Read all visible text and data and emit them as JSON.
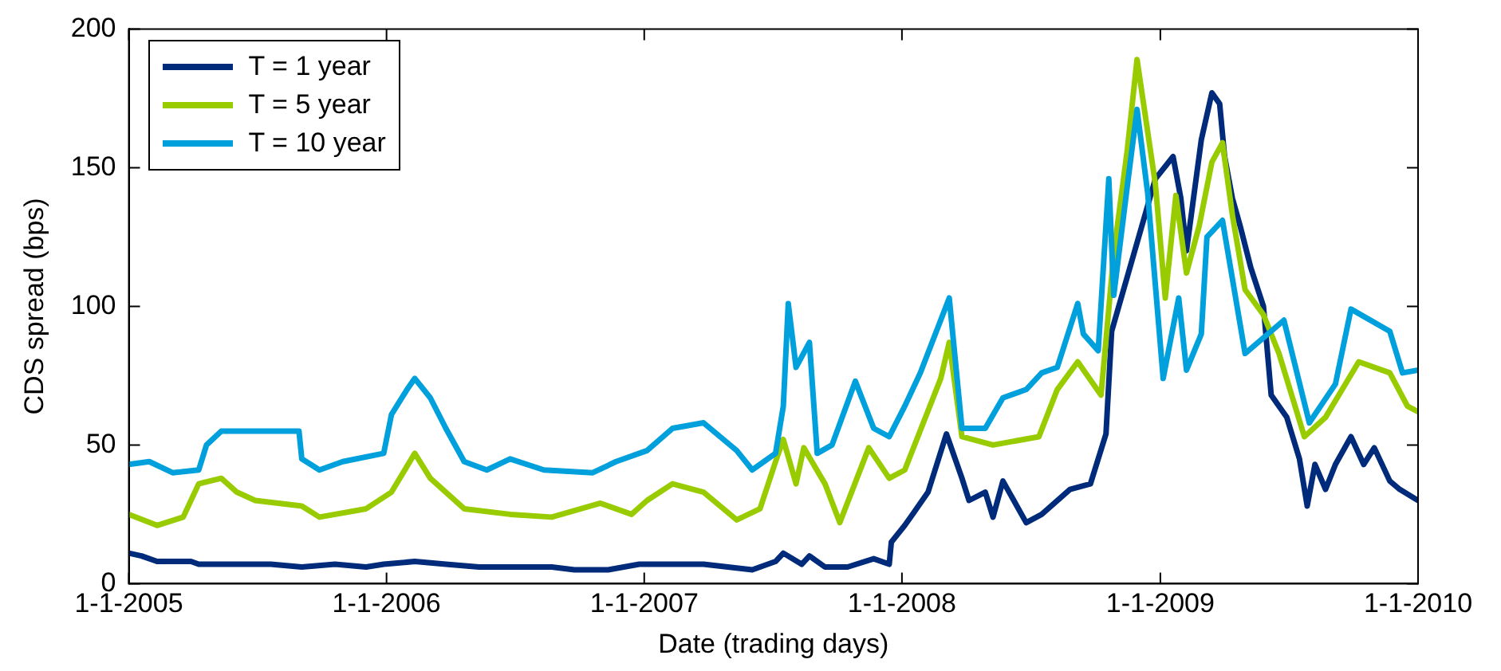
{
  "chart_data": {
    "type": "line",
    "xlabel": "Date (trading days)",
    "ylabel": "CDS spread (bps)",
    "xlim": [
      "2005-01-01",
      "2010-01-01"
    ],
    "ylim": [
      0,
      200
    ],
    "xticks": [
      {
        "value": "2005-01-01",
        "label": "1-1-2005"
      },
      {
        "value": "2006-01-01",
        "label": "1-1-2006"
      },
      {
        "value": "2007-01-01",
        "label": "1-1-2007"
      },
      {
        "value": "2008-01-01",
        "label": "1-1-2008"
      },
      {
        "value": "2009-01-01",
        "label": "1-1-2009"
      },
      {
        "value": "2010-01-01",
        "label": "1-1-2010"
      }
    ],
    "yticks": [
      0,
      50,
      100,
      150,
      200
    ],
    "grid": false,
    "legend": "top left",
    "marker": "none",
    "line_style": "solid",
    "series": [
      {
        "name": "T = 1 year",
        "color": "#002a7a",
        "x": [
          "2005-01-01",
          "2005-01-19",
          "2005-02-10",
          "2005-03-30",
          "2005-04-10",
          "2005-07-21",
          "2005-09-03",
          "2005-10-20",
          "2005-12-03",
          "2005-12-28",
          "2006-02-10",
          "2006-03-26",
          "2006-05-12",
          "2006-07-21",
          "2006-08-23",
          "2006-09-24",
          "2006-11-11",
          "2006-12-25",
          "2007-03-26",
          "2007-06-03",
          "2007-07-06",
          "2007-07-17",
          "2007-08-12",
          "2007-08-23",
          "2007-09-14",
          "2007-10-16",
          "2007-11-22",
          "2007-12-14",
          "2007-12-17",
          "2008-01-05",
          "2008-01-16",
          "2008-02-07",
          "2008-03-04",
          "2008-03-26",
          "2008-04-05",
          "2008-04-28",
          "2008-05-09",
          "2008-05-23",
          "2008-06-25",
          "2008-07-17",
          "2008-08-26",
          "2008-09-24",
          "2008-10-16",
          "2008-10-24",
          "2008-12-25",
          "2009-01-19",
          "2009-01-30",
          "2009-02-07",
          "2009-02-28",
          "2009-03-15",
          "2009-03-26",
          "2009-04-02",
          "2009-04-13",
          "2009-04-24",
          "2009-05-09",
          "2009-05-27",
          "2009-06-07",
          "2009-06-29",
          "2009-07-17",
          "2009-07-28",
          "2009-08-08",
          "2009-08-23",
          "2009-09-06",
          "2009-09-28",
          "2009-10-16",
          "2009-10-31",
          "2009-11-22",
          "2009-12-06",
          "2010-01-01"
        ],
        "values": [
          11,
          10,
          8,
          8,
          7,
          7,
          6,
          7,
          6,
          7,
          8,
          7,
          6,
          6,
          6,
          5,
          5,
          7,
          7,
          5,
          8,
          11,
          7,
          10,
          6,
          6,
          9,
          7,
          15,
          21,
          25,
          33,
          54,
          38,
          30,
          33,
          24,
          37,
          22,
          25,
          34,
          36,
          54,
          91,
          146,
          154,
          139,
          120,
          160,
          177,
          173,
          154,
          139,
          129,
          114,
          100,
          68,
          60,
          45,
          28,
          43,
          34,
          43,
          53,
          43,
          49,
          37,
          34,
          30
        ]
      },
      {
        "name": "T = 5 year",
        "color": "#99cc00",
        "x": [
          "2005-01-01",
          "2005-02-10",
          "2005-03-19",
          "2005-04-10",
          "2005-05-12",
          "2005-06-03",
          "2005-06-29",
          "2005-09-03",
          "2005-09-28",
          "2005-12-03",
          "2006-01-08",
          "2006-02-10",
          "2006-03-04",
          "2006-04-21",
          "2006-06-25",
          "2006-08-23",
          "2006-10-31",
          "2006-12-14",
          "2007-01-05",
          "2007-02-10",
          "2007-03-26",
          "2007-05-12",
          "2007-06-14",
          "2007-07-06",
          "2007-07-17",
          "2007-08-04",
          "2007-08-15",
          "2007-09-14",
          "2007-10-05",
          "2007-11-15",
          "2007-12-14",
          "2008-01-05",
          "2008-02-25",
          "2008-03-08",
          "2008-03-26",
          "2008-05-09",
          "2008-07-13",
          "2008-08-08",
          "2008-09-06",
          "2008-10-09",
          "2008-10-27",
          "2008-11-15",
          "2008-11-29",
          "2008-12-25",
          "2009-01-08",
          "2009-01-23",
          "2009-02-07",
          "2009-02-25",
          "2009-03-15",
          "2009-03-30",
          "2009-04-13",
          "2009-05-01",
          "2009-05-27",
          "2009-06-18",
          "2009-07-24",
          "2009-08-23",
          "2009-10-09",
          "2009-11-22",
          "2009-12-17",
          "2010-01-01"
        ],
        "values": [
          25,
          21,
          24,
          36,
          38,
          33,
          30,
          28,
          24,
          27,
          33,
          47,
          38,
          27,
          25,
          24,
          29,
          25,
          30,
          36,
          33,
          23,
          27,
          44,
          52,
          36,
          49,
          36,
          22,
          49,
          38,
          41,
          74,
          87,
          53,
          50,
          53,
          70,
          80,
          68,
          119,
          156,
          189,
          144,
          103,
          140,
          112,
          129,
          152,
          159,
          133,
          106,
          97,
          83,
          53,
          60,
          80,
          76,
          64,
          62
        ]
      },
      {
        "name": "T = 10 year",
        "color": "#00a0dc",
        "x": [
          "2005-01-01",
          "2005-01-30",
          "2005-03-04",
          "2005-04-10",
          "2005-04-21",
          "2005-05-12",
          "2005-08-30",
          "2005-09-03",
          "2005-09-28",
          "2005-10-31",
          "2005-12-28",
          "2006-01-08",
          "2006-01-30",
          "2006-02-10",
          "2006-03-04",
          "2006-03-26",
          "2006-04-21",
          "2006-05-23",
          "2006-06-25",
          "2006-08-12",
          "2006-10-20",
          "2006-11-22",
          "2007-01-05",
          "2007-02-10",
          "2007-03-26",
          "2007-05-12",
          "2007-06-03",
          "2007-07-06",
          "2007-07-17",
          "2007-07-24",
          "2007-08-04",
          "2007-08-23",
          "2007-09-03",
          "2007-09-24",
          "2007-10-27",
          "2007-11-22",
          "2007-12-14",
          "2008-01-05",
          "2008-01-27",
          "2008-03-08",
          "2008-03-26",
          "2008-04-28",
          "2008-05-23",
          "2008-06-25",
          "2008-07-17",
          "2008-08-08",
          "2008-09-06",
          "2008-09-14",
          "2008-10-05",
          "2008-10-20",
          "2008-10-27",
          "2008-11-15",
          "2008-11-29",
          "2008-12-14",
          "2009-01-05",
          "2009-01-27",
          "2009-02-07",
          "2009-02-28",
          "2009-03-08",
          "2009-03-30",
          "2009-05-01",
          "2009-06-25",
          "2009-07-31",
          "2009-09-06",
          "2009-09-28",
          "2009-11-22",
          "2009-12-10",
          "2010-01-01"
        ],
        "values": [
          43,
          44,
          40,
          41,
          50,
          55,
          55,
          45,
          41,
          44,
          47,
          61,
          70,
          74,
          67,
          56,
          44,
          41,
          45,
          41,
          40,
          44,
          48,
          56,
          58,
          48,
          41,
          47,
          64,
          101,
          78,
          87,
          47,
          50,
          73,
          56,
          53,
          64,
          76,
          103,
          56,
          56,
          67,
          70,
          76,
          78,
          101,
          90,
          84,
          146,
          104,
          143,
          171,
          141,
          74,
          103,
          77,
          90,
          125,
          131,
          83,
          95,
          58,
          72,
          99,
          91,
          76,
          77
        ]
      }
    ]
  }
}
